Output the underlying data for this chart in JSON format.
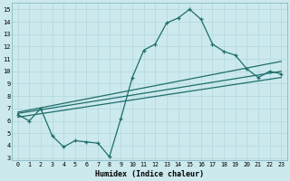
{
  "xlabel": "Humidex (Indice chaleur)",
  "xlim": [
    -0.5,
    23.5
  ],
  "ylim": [
    2.8,
    15.5
  ],
  "yticks": [
    3,
    4,
    5,
    6,
    7,
    8,
    9,
    10,
    11,
    12,
    13,
    14,
    15
  ],
  "xticks": [
    0,
    1,
    2,
    3,
    4,
    5,
    6,
    7,
    8,
    9,
    10,
    11,
    12,
    13,
    14,
    15,
    16,
    17,
    18,
    19,
    20,
    21,
    22,
    23
  ],
  "bg_color": "#cce9ee",
  "grid_color": "#b8dce2",
  "line_color": "#1e6e6a",
  "lines": [
    {
      "x": [
        0,
        1,
        2,
        3,
        4,
        5,
        6,
        7,
        8,
        9,
        10,
        11,
        12,
        13,
        14,
        15,
        16,
        17,
        18,
        19,
        20,
        21,
        22,
        23
      ],
      "y": [
        6.5,
        6.0,
        7.0,
        4.8,
        3.9,
        4.4,
        4.3,
        4.2,
        3.1,
        6.2,
        9.5,
        11.7,
        12.2,
        13.9,
        14.3,
        15.0,
        14.2,
        12.2,
        11.6,
        11.3,
        10.2,
        9.5,
        10.0,
        9.8
      ],
      "marker": "+"
    },
    {
      "x": [
        0,
        23
      ],
      "y": [
        6.7,
        10.8
      ],
      "marker": null
    },
    {
      "x": [
        0,
        23
      ],
      "y": [
        6.6,
        10.0
      ],
      "marker": null
    },
    {
      "x": [
        0,
        23
      ],
      "y": [
        6.3,
        9.5
      ],
      "marker": null
    }
  ]
}
